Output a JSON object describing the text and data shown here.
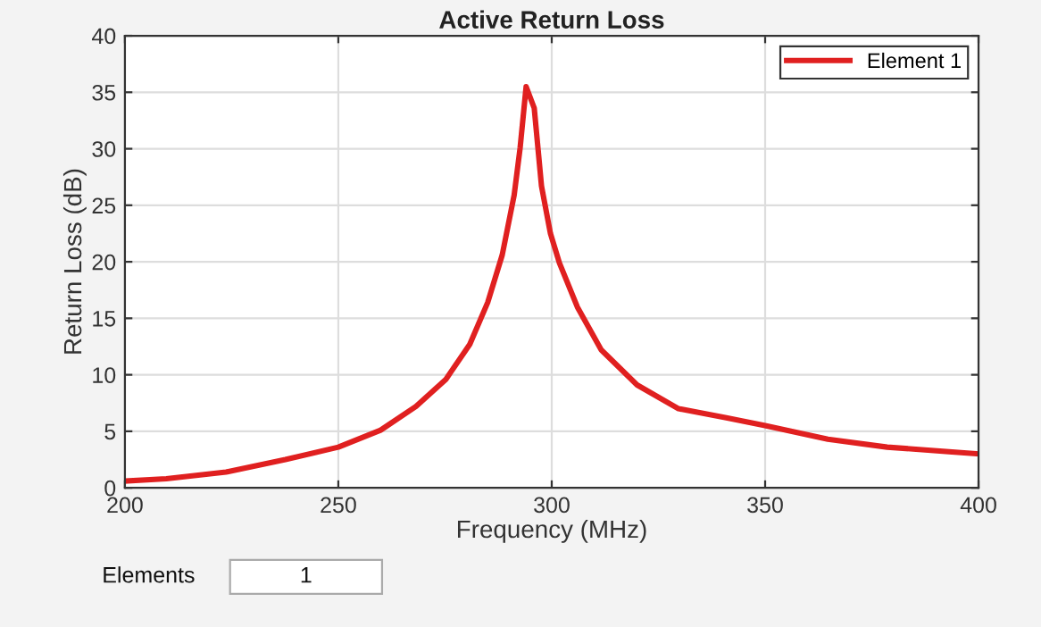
{
  "chart_data": {
    "type": "line",
    "title": "Active Return Loss",
    "xlabel": "Frequency (MHz)",
    "ylabel": "Return Loss (dB)",
    "xlim": [
      200,
      400
    ],
    "xticks": [
      200,
      250,
      300,
      350,
      400
    ],
    "ylim": [
      0,
      40
    ],
    "yticks": [
      0,
      5,
      10,
      15,
      20,
      25,
      30,
      35,
      40
    ],
    "grid": true,
    "legend": "top right",
    "annotations": [
      "Elements",
      "1"
    ],
    "series": [
      {
        "name": "Element 1",
        "color": "#e02020",
        "x": [
          200,
          209.7,
          223.7,
          237.6,
          250,
          259.9,
          268.2,
          275.2,
          280.8,
          285,
          288.4,
          291.2,
          292.6,
          294,
          295.9,
          297.6,
          299.7,
          301.8,
          306,
          311.6,
          320,
          329.7,
          340.9,
          350,
          364.7,
          378.6,
          400
        ],
        "values": [
          0.6,
          0.8,
          1.4,
          2.5,
          3.6,
          5.1,
          7.2,
          9.6,
          12.7,
          16.4,
          20.6,
          25.9,
          30.1,
          35.5,
          33.6,
          26.7,
          22.5,
          19.9,
          16.0,
          12.2,
          9.1,
          7.0,
          6.2,
          5.5,
          4.3,
          3.6,
          3.0
        ]
      }
    ]
  }
}
